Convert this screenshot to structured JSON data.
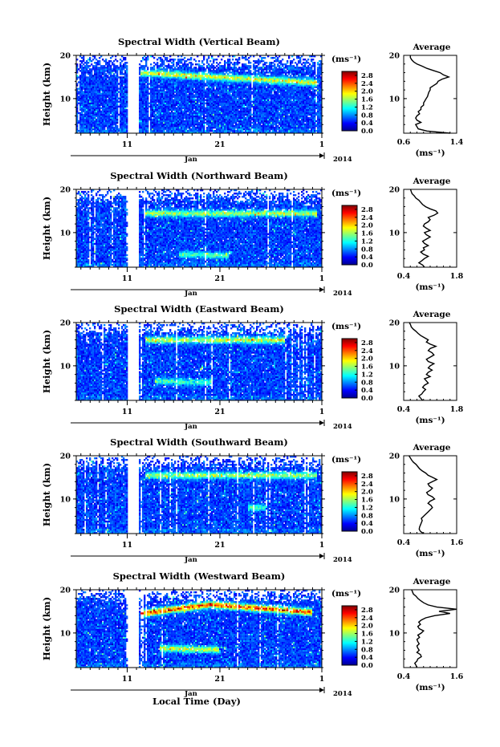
{
  "chart_data": [
    {
      "type": "heatmap",
      "title": "Spectral Width (Vertical Beam)",
      "ylabel": "Height (km)",
      "ylim": [
        2,
        20
      ],
      "yticks": [
        "20",
        "10"
      ],
      "xticks": [
        "11",
        "21",
        "1"
      ],
      "month_label": "Jan",
      "year_label": "2014",
      "gap_days": [
        11.0,
        12.3
      ],
      "colorbar": {
        "unit": "(ms⁻¹)",
        "min": 0.0,
        "max": 3.0,
        "ticks": [
          "2.8",
          "2.4",
          "2.0",
          "1.6",
          "1.2",
          "0.8",
          "0.4",
          "0.0"
        ]
      },
      "layers": [
        {
          "h": 16.0,
          "day0": 12.5,
          "slope": -0.12,
          "day_end": 31.5,
          "amp": 1.6
        }
      ],
      "average": {
        "title": "Average",
        "xlabel": "(ms⁻¹)",
        "xlim": [
          0.6,
          1.4
        ],
        "xticks": [
          "0.6",
          "1.4"
        ],
        "yticks": [
          "20",
          "10"
        ],
        "heights": [
          2.0,
          2.5,
          3,
          3.5,
          4,
          4.5,
          5,
          5.5,
          6,
          6.5,
          7,
          7.5,
          8,
          8.5,
          9,
          9.5,
          10,
          10.5,
          11,
          11.5,
          12,
          12.5,
          13,
          13.5,
          14,
          14.5,
          15,
          15.5,
          16,
          16.5,
          17,
          17.5,
          18,
          18.5,
          19,
          19.5,
          20
        ],
        "values": [
          1.3,
          0.95,
          0.82,
          0.8,
          0.78,
          0.86,
          0.8,
          0.78,
          0.8,
          0.84,
          0.82,
          0.86,
          0.86,
          0.9,
          0.9,
          0.92,
          0.94,
          0.96,
          0.97,
          0.98,
          1.0,
          1.0,
          1.05,
          1.1,
          1.12,
          1.18,
          1.28,
          1.2,
          1.15,
          1.05,
          0.95,
          0.88,
          0.8,
          0.75,
          0.72,
          0.7,
          0.7
        ]
      }
    },
    {
      "type": "heatmap",
      "title": "Spectral Width (Northward Beam)",
      "ylabel": "Height (km)",
      "ylim": [
        2,
        20
      ],
      "yticks": [
        "20",
        "10"
      ],
      "xticks": [
        "11",
        "21",
        "1"
      ],
      "month_label": "Jan",
      "year_label": "2014",
      "gap_days": [
        11.0,
        12.3
      ],
      "colorbar": {
        "unit": "(ms⁻¹)",
        "min": 0.0,
        "max": 3.0,
        "ticks": [
          "2.8",
          "2.4",
          "2.0",
          "1.6",
          "1.2",
          "0.8",
          "0.4",
          "0.0"
        ]
      },
      "layers": [
        {
          "h": 14.5,
          "day0": 13.0,
          "slope": 0.0,
          "day_end": 31.5,
          "amp": 1.4
        },
        {
          "h": 5.0,
          "day0": 16.5,
          "slope": -0.05,
          "day_end": 22.0,
          "amp": 1.0
        }
      ],
      "average": {
        "title": "Average",
        "xlabel": "(ms⁻¹)",
        "xlim": [
          0.4,
          1.8
        ],
        "xticks": [
          "0.4",
          "1.8"
        ],
        "yticks": [
          "20",
          "10"
        ],
        "heights": [
          2.0,
          2.5,
          3,
          3.5,
          4,
          4.5,
          5,
          5.5,
          6,
          6.5,
          7,
          7.5,
          8,
          8.5,
          9,
          9.5,
          10,
          10.5,
          11,
          11.5,
          12,
          12.5,
          13,
          13.5,
          14,
          14.5,
          15,
          15.5,
          16,
          16.5,
          17,
          17.5,
          18,
          18.5,
          19,
          19.5,
          20
        ],
        "values": [
          0.95,
          0.9,
          0.8,
          0.88,
          0.95,
          1.05,
          0.92,
          0.85,
          0.95,
          0.92,
          1.05,
          0.95,
          0.9,
          1.0,
          1.1,
          1.0,
          0.95,
          1.1,
          1.0,
          0.92,
          0.95,
          1.05,
          1.1,
          1.05,
          1.2,
          1.3,
          1.25,
          1.1,
          0.98,
          0.9,
          0.85,
          0.8,
          0.72,
          0.68,
          0.62,
          0.6,
          0.58
        ]
      }
    },
    {
      "type": "heatmap",
      "title": "Spectral Width (Eastward Beam)",
      "ylabel": "Height (km)",
      "ylim": [
        2,
        20
      ],
      "yticks": [
        "20",
        "10"
      ],
      "xticks": [
        "11",
        "21",
        "1"
      ],
      "month_label": "Jan",
      "year_label": "2014",
      "gap_days": [
        11.0,
        12.3
      ],
      "colorbar": {
        "unit": "(ms⁻¹)",
        "min": 0.0,
        "max": 3.0,
        "ticks": [
          "2.8",
          "2.4",
          "2.0",
          "1.6",
          "1.2",
          "0.8",
          "0.4",
          "0.0"
        ]
      },
      "layers": [
        {
          "h": 16.0,
          "day0": 13.0,
          "slope": 0.0,
          "day_end": 28.0,
          "amp": 1.5
        },
        {
          "h": 6.5,
          "day0": 14.0,
          "slope": -0.05,
          "day_end": 20.0,
          "amp": 1.0
        }
      ],
      "average": {
        "title": "Average",
        "xlabel": "(ms⁻¹)",
        "xlim": [
          0.4,
          1.8
        ],
        "xticks": [
          "0.4",
          "1.8"
        ],
        "yticks": [
          "20",
          "10"
        ],
        "heights": [
          2.0,
          2.5,
          3,
          3.5,
          4,
          4.5,
          5,
          5.5,
          6,
          6.5,
          7,
          7.5,
          8,
          8.5,
          9,
          9.5,
          10,
          10.5,
          11,
          11.5,
          12,
          12.5,
          13,
          13.5,
          14,
          14.5,
          15,
          15.5,
          16,
          16.5,
          17,
          17.5,
          18,
          18.5,
          19,
          19.5,
          20
        ],
        "values": [
          0.9,
          0.85,
          0.8,
          0.88,
          0.92,
          0.98,
          0.9,
          0.95,
          1.05,
          1.0,
          0.95,
          1.1,
          1.0,
          1.05,
          1.15,
          1.05,
          1.1,
          1.2,
          1.05,
          1.0,
          1.1,
          1.2,
          1.15,
          1.05,
          1.1,
          1.25,
          1.1,
          1.0,
          1.05,
          0.95,
          0.85,
          0.78,
          0.72,
          0.65,
          0.6,
          0.58,
          0.55
        ]
      }
    },
    {
      "type": "heatmap",
      "title": "Spectral Width (Southward Beam)",
      "ylabel": "Height (km)",
      "ylim": [
        2,
        20
      ],
      "yticks": [
        "20",
        "10"
      ],
      "xticks": [
        "11",
        "21",
        "1"
      ],
      "month_label": "Jan",
      "year_label": "2014",
      "gap_days": [
        11.0,
        12.3
      ],
      "colorbar": {
        "unit": "(ms⁻¹)",
        "min": 0.0,
        "max": 3.0,
        "ticks": [
          "2.8",
          "2.4",
          "2.0",
          "1.6",
          "1.2",
          "0.8",
          "0.4",
          "0.0"
        ]
      },
      "layers": [
        {
          "h": 15.5,
          "day0": 13.0,
          "slope": 0.0,
          "day_end": 31.5,
          "amp": 1.3
        },
        {
          "h": 8.0,
          "day0": 24.0,
          "slope": 0.0,
          "day_end": 26.0,
          "amp": 1.0
        }
      ],
      "average": {
        "title": "Average",
        "xlabel": "(ms⁻¹)",
        "xlim": [
          0.4,
          1.6
        ],
        "xticks": [
          "0.4",
          "1.6"
        ],
        "yticks": [
          "20",
          "10"
        ],
        "heights": [
          2.0,
          2.5,
          3,
          3.5,
          4,
          4.5,
          5,
          5.5,
          6,
          6.5,
          7,
          7.5,
          8,
          8.5,
          9,
          9.5,
          10,
          10.5,
          11,
          11.5,
          12,
          12.5,
          13,
          13.5,
          14,
          14.5,
          15,
          15.5,
          16,
          16.5,
          17,
          17.5,
          18,
          18.5,
          19,
          19.5,
          20
        ],
        "values": [
          0.85,
          0.78,
          0.75,
          0.76,
          0.78,
          0.8,
          0.82,
          0.8,
          0.85,
          0.9,
          0.95,
          1.0,
          1.05,
          1.02,
          0.95,
          1.0,
          1.1,
          1.05,
          0.95,
          0.92,
          1.0,
          1.05,
          0.98,
          0.95,
          1.05,
          1.15,
          1.05,
          0.95,
          0.9,
          0.82,
          0.76,
          0.72,
          0.68,
          0.62,
          0.58,
          0.55,
          0.52
        ]
      }
    },
    {
      "type": "heatmap",
      "title": "Spectral Width (Westward Beam)",
      "ylabel": "Height (km)",
      "ylim": [
        2,
        20
      ],
      "yticks": [
        "20",
        "10"
      ],
      "xticks": [
        "11",
        "21",
        "1"
      ],
      "month_label": "Jan",
      "year_label": "2014",
      "gap_days": [
        11.0,
        12.3
      ],
      "colorbar": {
        "unit": "(ms⁻¹)",
        "min": 0.0,
        "max": 3.0,
        "ticks": [
          "2.8",
          "2.4",
          "2.0",
          "1.6",
          "1.2",
          "0.8",
          "0.4",
          "0.0"
        ]
      },
      "layers": [
        {
          "h": 14.5,
          "day0": 12.5,
          "slope": 0.28,
          "day_end": 20.0,
          "amp": 2.4
        },
        {
          "h": 16.6,
          "day0": 20.0,
          "slope": -0.16,
          "day_end": 31.0,
          "amp": 2.4
        },
        {
          "h": 6.5,
          "day0": 14.5,
          "slope": -0.05,
          "day_end": 21.0,
          "amp": 1.6
        }
      ],
      "average": {
        "title": "Average",
        "xlabel": "(ms⁻¹)",
        "xlim": [
          0.4,
          1.6
        ],
        "xticks": [
          "0.4",
          "1.6"
        ],
        "yticks": [
          "20",
          "10"
        ],
        "heights": [
          2.0,
          2.5,
          3,
          3.5,
          4,
          4.5,
          5,
          5.5,
          6,
          6.5,
          7,
          7.5,
          8,
          8.5,
          9,
          9.5,
          10,
          10.5,
          11,
          11.5,
          12,
          12.5,
          13,
          13.5,
          14,
          14.5,
          15,
          15.5,
          16,
          16.5,
          17,
          17.5,
          18,
          18.5,
          19,
          19.5,
          20
        ],
        "values": [
          0.7,
          0.68,
          0.65,
          0.7,
          0.72,
          0.8,
          0.78,
          0.7,
          0.75,
          0.72,
          0.7,
          0.75,
          0.72,
          0.7,
          0.76,
          0.72,
          0.8,
          0.85,
          0.75,
          0.72,
          0.78,
          0.74,
          0.8,
          0.9,
          1.1,
          1.45,
          1.2,
          1.6,
          1.15,
          0.95,
          0.85,
          0.78,
          0.72,
          0.68,
          0.62,
          0.6,
          0.58
        ]
      }
    }
  ],
  "figure": {
    "xlabel": "Local Time (Day)"
  }
}
